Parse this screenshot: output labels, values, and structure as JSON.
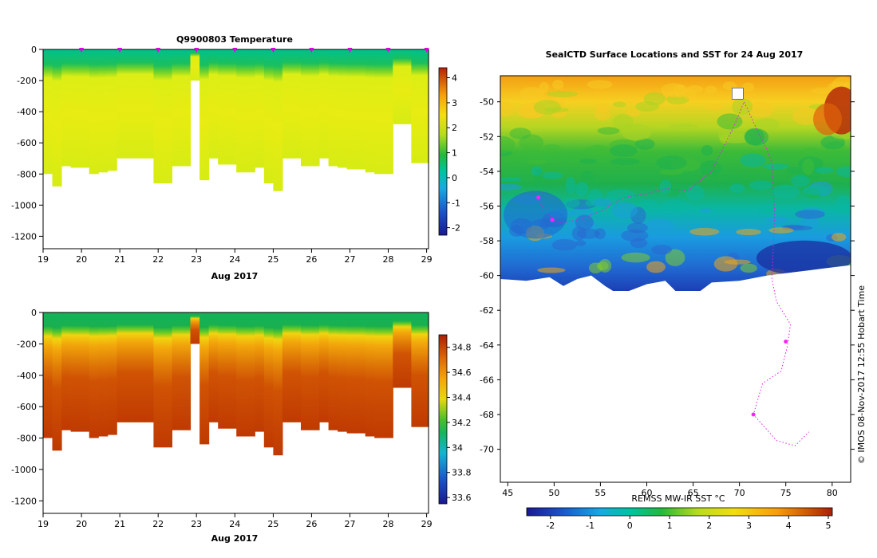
{
  "chart_data": [
    {
      "type": "heatmap",
      "title": "Q9900803  Temperature",
      "xlabel": "Aug 2017",
      "ylabel": "",
      "x_ticks": [
        "19",
        "20",
        "21",
        "22",
        "23",
        "24",
        "25",
        "26",
        "27",
        "28",
        "29"
      ],
      "y_ticks": [
        "0",
        "-200",
        "-400",
        "-600",
        "-800",
        "-1000",
        "-1200"
      ],
      "xlim": [
        19,
        29.05
      ],
      "ylim": [
        -1280,
        0
      ],
      "colorbar_ticks": [
        "4",
        "3",
        "2",
        "1",
        "0",
        "-1",
        "-2"
      ],
      "colorbar_range": [
        -2.3,
        4.4
      ],
      "profile_depths": [
        -800,
        -880,
        -750,
        -760,
        -760,
        -800,
        -790,
        -780,
        -700,
        -700,
        -700,
        -700,
        -860,
        -860,
        -750,
        -750,
        -200,
        -840,
        -700,
        -740,
        -740,
        -790,
        -790,
        -760,
        -860,
        -910,
        -700,
        -700,
        -750,
        -750,
        -700,
        -750,
        -760,
        -770,
        -770,
        -790,
        -800,
        -800,
        -480,
        -480,
        -730,
        -730
      ],
      "profile_start": 19.0,
      "profile_step": 0.24,
      "gap_day": [
        22.8,
        23.1
      ],
      "surface_values": [
        -0.2,
        1.6,
        2.6
      ],
      "colors": {
        "surface": "#00c37f",
        "mixed": "#26c94a",
        "deep": "#d8ec13",
        "gap": "#ffffff"
      }
    },
    {
      "type": "heatmap",
      "title": "",
      "xlabel": "Aug 2017",
      "ylabel": "",
      "x_ticks": [
        "19",
        "20",
        "21",
        "22",
        "23",
        "24",
        "25",
        "26",
        "27",
        "28",
        "29"
      ],
      "y_ticks": [
        "0",
        "-200",
        "-400",
        "-600",
        "-800",
        "-1000",
        "-1200"
      ],
      "xlim": [
        19,
        29.05
      ],
      "ylim": [
        -1280,
        0
      ],
      "colorbar_ticks": [
        "34.8",
        "34.6",
        "34.4",
        "34.2",
        "34",
        "33.8",
        "33.6"
      ],
      "colorbar_range": [
        33.55,
        34.9
      ],
      "profile_depths": [
        -800,
        -880,
        -750,
        -760,
        -760,
        -800,
        -790,
        -780,
        -700,
        -700,
        -700,
        -700,
        -860,
        -860,
        -750,
        -750,
        -200,
        -840,
        -700,
        -740,
        -740,
        -790,
        -790,
        -760,
        -860,
        -910,
        -700,
        -700,
        -750,
        -750,
        -700,
        -750,
        -760,
        -770,
        -770,
        -790,
        -800,
        -800,
        -480,
        -480,
        -730,
        -730
      ],
      "colors": {
        "surface": "#19b050",
        "cline": "#f3b500",
        "deep": "#c33a00"
      }
    },
    {
      "type": "heatmap",
      "title": "SealCTD Surface Locations and SST for 24 Aug 2017",
      "xlabel": "REMSS MW-IR SST °C",
      "ylabel": "",
      "x_ticks": [
        "45",
        "50",
        "55",
        "60",
        "65",
        "70",
        "75",
        "80"
      ],
      "y_ticks": [
        "-50",
        "-52",
        "-54",
        "-56",
        "-58",
        "-60",
        "-62",
        "-64",
        "-66",
        "-68",
        "-70"
      ],
      "xlim": [
        44.2,
        82
      ],
      "ylim": [
        -71.9,
        -48.5
      ],
      "colorbar_ticks": [
        "-2",
        "-1",
        "0",
        "1",
        "2",
        "3",
        "4",
        "5"
      ],
      "colorbar_range": [
        -2.6,
        5.1
      ],
      "ice_edge_lat": -60.2,
      "track": [
        [
          48.3,
          -55.5
        ],
        [
          48.8,
          -56.2
        ],
        [
          50.5,
          -57.0
        ],
        [
          52.5,
          -56.8
        ],
        [
          55.0,
          -56.3
        ],
        [
          57.5,
          -55.5
        ],
        [
          60.0,
          -55.3
        ],
        [
          62.0,
          -55.0
        ],
        [
          64.5,
          -55.1
        ],
        [
          67.0,
          -54.0
        ],
        [
          69.5,
          -51.3
        ],
        [
          70.5,
          -50.0
        ],
        [
          71.8,
          -51.5
        ],
        [
          73.0,
          -52.8
        ],
        [
          73.5,
          -53.5
        ],
        [
          73.8,
          -56.5
        ],
        [
          73.5,
          -60.2
        ],
        [
          74.0,
          -61.5
        ],
        [
          75.5,
          -62.8
        ],
        [
          75.2,
          -64.0
        ],
        [
          74.5,
          -65.5
        ],
        [
          72.5,
          -66.2
        ],
        [
          71.5,
          -68.0
        ],
        [
          74.0,
          -69.5
        ],
        [
          76.0,
          -69.8
        ],
        [
          77.5,
          -69.0
        ]
      ],
      "sst_anchors": [
        [
          -50,
          3.4
        ],
        [
          -51.5,
          2.8
        ],
        [
          -53,
          1.6
        ],
        [
          -55,
          0.9
        ],
        [
          -56,
          0.3
        ],
        [
          -57.5,
          -0.4
        ],
        [
          -59,
          -1.2
        ],
        [
          -60,
          -1.9
        ]
      ]
    }
  ],
  "stamp": "©  IMOS 08-Nov-2017 12:55 Hobart Time"
}
